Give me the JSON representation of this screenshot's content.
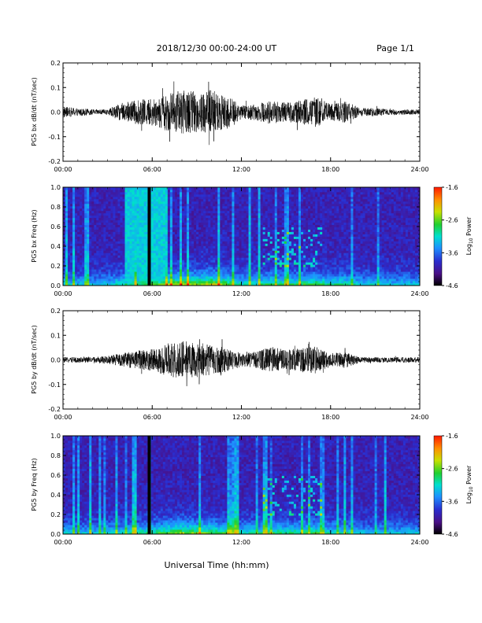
{
  "header": {
    "date_range": "2018/12/30  00:00-24:00 UT",
    "page": "Page 1/1"
  },
  "footer": {
    "xlabel": "Universal Time (hh:mm)"
  },
  "chart_data": [
    {
      "type": "line",
      "ylabel": "PG5 bx dB/dt (nT/sec)",
      "xlim": [
        "00:00",
        "24:00"
      ],
      "x_ticks": [
        "00:00",
        "06:00",
        "12:00",
        "18:00",
        "24:00"
      ],
      "ylim": [
        -0.2,
        0.2
      ],
      "y_ticks": [
        "-0.2",
        "-0.1",
        "0.0",
        "0.1",
        "0.2"
      ],
      "envelope": {
        "hours": [
          0,
          1,
          2,
          3,
          4,
          5,
          6,
          7,
          8,
          9,
          10,
          11,
          12,
          13,
          14,
          15,
          16,
          17,
          18,
          19,
          20,
          21,
          22,
          23,
          24
        ],
        "amplitude": [
          0.04,
          0.03,
          0.02,
          0.02,
          0.07,
          0.09,
          0.1,
          0.14,
          0.16,
          0.15,
          0.17,
          0.13,
          0.05,
          0.06,
          0.09,
          0.07,
          0.09,
          0.11,
          0.06,
          0.08,
          0.03,
          0.03,
          0.02,
          0.02,
          0.02
        ]
      }
    },
    {
      "type": "heatmap",
      "ylabel": "PG5 bx Freq (Hz)",
      "xlim": [
        "00:00",
        "24:00"
      ],
      "x_ticks": [
        "00:00",
        "06:00",
        "12:00",
        "18:00",
        "24:00"
      ],
      "ylim": [
        0.0,
        1.0
      ],
      "y_ticks": [
        "0.0",
        "0.2",
        "0.4",
        "0.6",
        "0.8",
        "1.0"
      ],
      "colorbar": {
        "label": "Log10 Power",
        "ticks": [
          "-1.6",
          "-2.6",
          "-3.6",
          "-4.6"
        ],
        "range": [
          -4.6,
          -1.6
        ]
      },
      "data_gap_hour": 5.8,
      "bright_band_hours": [
        4.1,
        7.1
      ]
    },
    {
      "type": "line",
      "ylabel": "PG5 by dB/dt (nT/sec)",
      "xlim": [
        "00:00",
        "24:00"
      ],
      "x_ticks": [
        "00:00",
        "06:00",
        "12:00",
        "18:00",
        "24:00"
      ],
      "ylim": [
        -0.2,
        0.2
      ],
      "y_ticks": [
        "-0.2",
        "-0.1",
        "0.0",
        "0.1",
        "0.2"
      ],
      "envelope": {
        "hours": [
          0,
          1,
          2,
          3,
          4,
          5,
          6,
          7,
          8,
          9,
          10,
          11,
          12,
          13,
          14,
          15,
          16,
          17,
          18,
          19,
          20,
          21,
          22,
          23,
          24
        ],
        "amplitude": [
          0.02,
          0.02,
          0.02,
          0.03,
          0.05,
          0.07,
          0.08,
          0.12,
          0.14,
          0.13,
          0.11,
          0.09,
          0.05,
          0.06,
          0.1,
          0.07,
          0.09,
          0.1,
          0.05,
          0.06,
          0.02,
          0.02,
          0.02,
          0.02,
          0.02
        ]
      }
    },
    {
      "type": "heatmap",
      "ylabel": "PG5 by Freq (Hz)",
      "xlim": [
        "00:00",
        "24:00"
      ],
      "x_ticks": [
        "00:00",
        "06:00",
        "12:00",
        "18:00",
        "24:00"
      ],
      "ylim": [
        0.0,
        1.0
      ],
      "y_ticks": [
        "0.0",
        "0.2",
        "0.4",
        "0.6",
        "0.8",
        "1.0"
      ],
      "colorbar": {
        "label": "Log10 Power",
        "ticks": [
          "-1.6",
          "-2.6",
          "-3.6",
          "-4.6"
        ],
        "range": [
          -4.6,
          -1.6
        ]
      },
      "data_gap_hour": 5.8,
      "bright_band_hours": null
    }
  ]
}
